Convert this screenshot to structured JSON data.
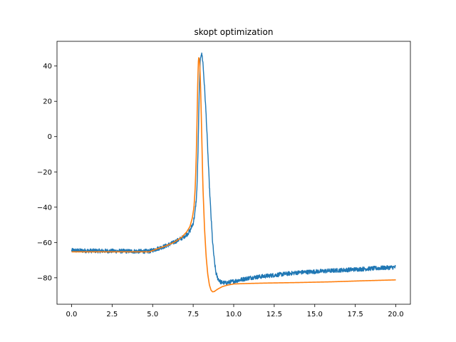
{
  "chart_data": {
    "type": "line",
    "title": "skopt optimization",
    "xlabel": "",
    "ylabel": "",
    "xlim": [
      -0.9,
      20.9
    ],
    "ylim": [
      -95,
      54
    ],
    "xticks": [
      0.0,
      2.5,
      5.0,
      7.5,
      10.0,
      12.5,
      15.0,
      17.5,
      20.0
    ],
    "xtick_labels": [
      "0.0",
      "2.5",
      "5.0",
      "7.5",
      "10.0",
      "12.5",
      "15.0",
      "17.5",
      "20.0"
    ],
    "yticks": [
      -80,
      -60,
      -40,
      -20,
      0,
      20,
      40
    ],
    "ytick_labels": [
      "−80",
      "−60",
      "−40",
      "−20",
      "0",
      "20",
      "40"
    ],
    "grid": false,
    "series": [
      {
        "color": "#1f77b4",
        "noise": 1.2,
        "x": [
          0,
          1,
          2,
          3,
          4,
          4.8,
          5.3,
          5.8,
          6.3,
          6.8,
          7.1,
          7.3,
          7.5,
          7.6,
          7.7,
          7.75,
          7.8,
          7.85,
          7.9,
          7.95,
          8.0,
          8.05,
          8.1,
          8.2,
          8.3,
          8.4,
          8.5,
          8.6,
          8.7,
          8.8,
          8.9,
          9.0,
          9.2,
          9.5,
          10.0,
          11.0,
          12.0,
          13.0,
          14.0,
          15.0,
          16.0,
          17.0,
          18.0,
          19.0,
          20.0
        ],
        "y": [
          -64.5,
          -64.7,
          -64.8,
          -64.9,
          -65.0,
          -65.0,
          -63.5,
          -62.0,
          -60.0,
          -57.5,
          -55.5,
          -53.5,
          -49.0,
          -44.0,
          -35.0,
          -25.0,
          -8.0,
          15.0,
          35.0,
          45.0,
          47.0,
          46.0,
          42.0,
          28.0,
          12.0,
          -8.0,
          -28.0,
          -45.0,
          -60.0,
          -70.0,
          -77.0,
          -80.0,
          -82.5,
          -83.0,
          -82.0,
          -80.0,
          -79.0,
          -78.0,
          -77.0,
          -76.5,
          -76.0,
          -75.5,
          -75.0,
          -74.5,
          -74.0
        ]
      },
      {
        "color": "#ff7f0e",
        "noise": 0,
        "x": [
          0,
          1,
          2,
          3,
          4,
          4.8,
          5.3,
          5.8,
          6.3,
          6.8,
          7.1,
          7.3,
          7.45,
          7.55,
          7.62,
          7.68,
          7.73,
          7.78,
          7.83,
          7.88,
          7.92,
          7.95,
          8.0,
          8.05,
          8.1,
          8.2,
          8.3,
          8.4,
          8.5,
          8.6,
          8.7,
          8.8,
          9.0,
          9.3,
          9.6,
          10.0,
          11.0,
          12.0,
          14.0,
          16.0,
          18.0,
          20.0
        ],
        "y": [
          -65.3,
          -65.3,
          -65.3,
          -65.3,
          -65.3,
          -65.3,
          -63.5,
          -62.0,
          -60.0,
          -57.0,
          -54.0,
          -51.0,
          -46.0,
          -40.0,
          -30.0,
          -15.0,
          5.0,
          30.0,
          45.0,
          44.0,
          38.0,
          30.0,
          12.0,
          -8.0,
          -28.0,
          -52.0,
          -68.0,
          -78.0,
          -84.0,
          -87.0,
          -88.0,
          -87.8,
          -86.5,
          -85.0,
          -84.2,
          -83.5,
          -83.2,
          -83.0,
          -82.7,
          -82.3,
          -81.7,
          -81.2
        ]
      }
    ]
  }
}
